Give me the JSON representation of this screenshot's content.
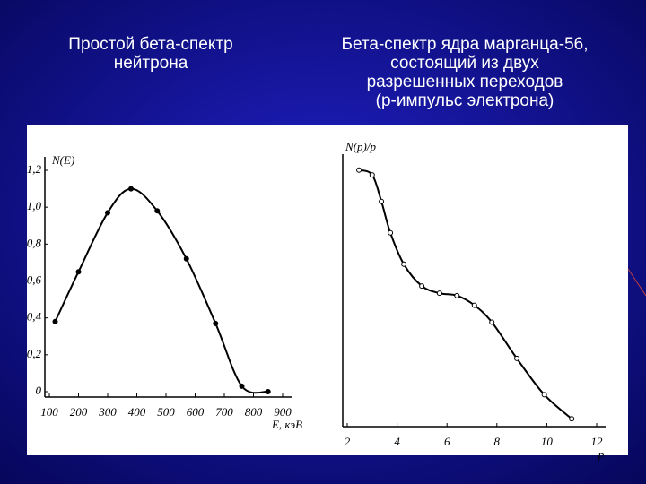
{
  "chart_data": [
    {
      "type": "line",
      "title": [
        "Простой бета-спектр",
        "нейтрона"
      ],
      "x_label": "E, кэВ",
      "y_label": "N(E)",
      "x": [
        120,
        200,
        300,
        380,
        470,
        570,
        670,
        760,
        850
      ],
      "series": [
        {
          "color": "#000000",
          "values": [
            0.38,
            0.65,
            0.97,
            1.1,
            0.98,
            0.72,
            0.37,
            0.03,
            0.0
          ]
        }
      ],
      "markers": true,
      "xlim": [
        100,
        900
      ],
      "xticks": [
        100,
        200,
        300,
        400,
        500,
        600,
        700,
        800,
        900
      ],
      "ylim": [
        0,
        1.2
      ],
      "yticks": [
        0,
        {
          "value": 0.2,
          "label": "0,2"
        },
        {
          "value": 0.4,
          "label": "0,4"
        },
        {
          "value": 0.6,
          "label": "0,6"
        },
        {
          "value": 0.8,
          "label": "0,8"
        },
        {
          "value": 1.0,
          "label": "1,0"
        },
        {
          "value": 1.2,
          "label": "1,2"
        }
      ]
    },
    {
      "type": "line",
      "title": [
        "Бета-спектр ядра марганца-56,",
        "состоящий из двух",
        "разрешенных переходов",
        "(р-импульс электрона)"
      ],
      "x_label": "p",
      "y_label": "N(p)/p",
      "x": [
        2.47,
        3.0,
        3.37,
        3.73,
        4.27,
        4.99,
        5.7,
        6.4,
        7.1,
        7.8,
        8.8,
        9.9,
        11.0
      ],
      "series": [
        {
          "color": "#000000",
          "values": [
            1.04,
            1.02,
            0.91,
            0.78,
            0.65,
            0.56,
            0.53,
            0.52,
            0.48,
            0.41,
            0.26,
            0.11,
            0.01
          ]
        }
      ],
      "markers": true,
      "xlim": [
        2,
        12
      ],
      "xticks": [
        2,
        4,
        6,
        8,
        10,
        12
      ],
      "ylim": [
        0,
        1.05
      ]
    }
  ]
}
